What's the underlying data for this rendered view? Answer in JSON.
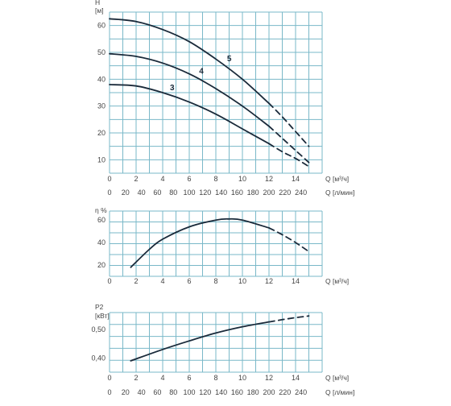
{
  "chart_data": [
    {
      "type": "line",
      "ylabel": "H",
      "yunit": "[м]",
      "x_label_q": "Q [м³/ч]",
      "x_label_lmin": "Q [л/мин]",
      "xlim": [
        0,
        16
      ],
      "ylim": [
        5,
        65
      ],
      "x_ticks": [
        0,
        2,
        4,
        6,
        8,
        10,
        12,
        14
      ],
      "x_ticks_lmin": [
        0,
        20,
        40,
        60,
        80,
        100,
        120,
        140,
        160,
        180,
        200,
        220,
        240
      ],
      "y_ticks": [
        10,
        20,
        30,
        40,
        50,
        60
      ],
      "grid": true,
      "colors": {
        "grid": "#7ab8c8",
        "curve": "#1a2a3a",
        "text": "#444444"
      },
      "series": [
        {
          "name": "5",
          "x": [
            0,
            2,
            4,
            6,
            8,
            10,
            12,
            13,
            14,
            15
          ],
          "y": [
            62.5,
            61.5,
            58.5,
            54,
            47.5,
            40,
            31,
            26,
            20.5,
            15
          ],
          "dashed_from": 12
        },
        {
          "name": "4",
          "x": [
            0,
            2,
            4,
            6,
            8,
            10,
            12,
            13,
            14,
            15
          ],
          "y": [
            49.5,
            48.5,
            46,
            42,
            36.5,
            30,
            22.5,
            18,
            13.5,
            9
          ],
          "dashed_from": 12
        },
        {
          "name": "3",
          "x": [
            0,
            2,
            4,
            6,
            8,
            10,
            12,
            13,
            14,
            15
          ],
          "y": [
            38,
            37.5,
            35,
            31.5,
            27,
            21.5,
            16,
            13,
            10.5,
            7.5
          ],
          "dashed_from": 12
        }
      ]
    },
    {
      "type": "line",
      "ylabel": "η %",
      "x_label_q": "Q [м³/ч]",
      "xlim": [
        0,
        16
      ],
      "ylim": [
        10,
        68
      ],
      "x_ticks": [
        0,
        2,
        4,
        6,
        8,
        10,
        12,
        14
      ],
      "y_ticks": [
        20,
        40,
        60
      ],
      "grid": true,
      "series": [
        {
          "x": [
            1.6,
            3,
            4,
            6,
            8,
            9,
            10,
            12,
            13,
            14,
            15
          ],
          "y": [
            18,
            34,
            43,
            54,
            60,
            61,
            60,
            53,
            47,
            40,
            32
          ],
          "dashed_from": 12
        }
      ]
    },
    {
      "type": "line",
      "ylabel": "P2",
      "yunit": "[кВт]",
      "x_label_q": "Q [м³/ч]",
      "x_label_lmin": "Q [л/мин]",
      "xlim": [
        0,
        16
      ],
      "ylim": [
        0.35,
        0.56
      ],
      "x_ticks": [
        0,
        2,
        4,
        6,
        8,
        10,
        12,
        14
      ],
      "x_ticks_lmin": [
        0,
        20,
        40,
        60,
        80,
        100,
        120,
        140,
        160,
        180,
        200,
        220,
        240
      ],
      "y_ticks": [
        "0,40",
        "0,50"
      ],
      "y_tick_values": [
        0.4,
        0.5
      ],
      "grid": true,
      "series": [
        {
          "x": [
            1.6,
            4,
            6,
            8,
            10,
            12,
            13,
            14,
            15
          ],
          "y": [
            0.39,
            0.43,
            0.46,
            0.488,
            0.51,
            0.527,
            0.535,
            0.542,
            0.548
          ],
          "dashed_from": 12
        }
      ]
    }
  ]
}
